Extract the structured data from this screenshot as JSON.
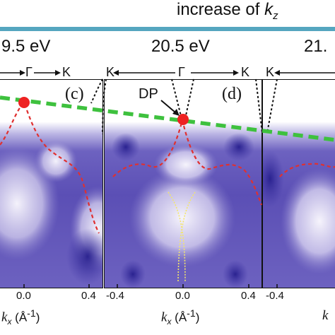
{
  "header": {
    "prefix": "increase of ",
    "k": "k",
    "sub": "z"
  },
  "colors": {
    "teal_bar": "#55a6bf",
    "spectral_purple": "#5a4fb6",
    "fit_curve_red": "#e03030",
    "dirac_line_green": "#3ec13e",
    "band_guide_yellow": "#f4e66a",
    "dirac_point_red": "#ee2222"
  },
  "panels": {
    "left": {
      "energy": "9.5 eV",
      "tag": "(c)",
      "direction_labels": [
        "Γ",
        "K"
      ],
      "ticks": [
        "0.0",
        "0.4"
      ]
    },
    "middle": {
      "energy": "20.5 eV",
      "tag": "(d)",
      "direction_labels": [
        "K",
        "Γ",
        "K"
      ],
      "ticks": [
        "-0.4",
        "0.0",
        "0.4"
      ],
      "dirac_point_label": "DP"
    },
    "right": {
      "energy": "21.",
      "direction_labels": [
        "K"
      ],
      "ticks": [
        "-0.4"
      ]
    }
  },
  "axis": {
    "k": "k",
    "sub": "x",
    "unit": "(Å",
    "exp": "-1",
    "close": ")"
  }
}
